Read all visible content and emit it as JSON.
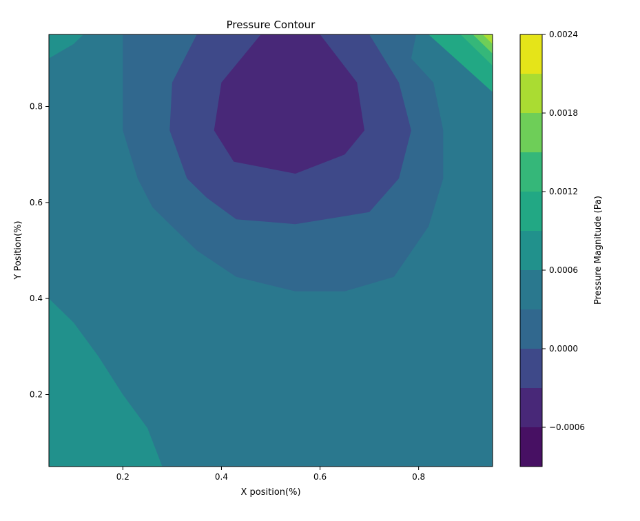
{
  "chart_data": {
    "type": "heatmap",
    "subtype": "filled-contour",
    "title": "Pressure Contour",
    "xlabel": "X position(%)",
    "ylabel": "Y Position(%)",
    "xlim": [
      0.05,
      0.95
    ],
    "ylim": [
      0.05,
      0.95
    ],
    "x_ticks": [
      0.2,
      0.4,
      0.6,
      0.8
    ],
    "y_ticks": [
      0.2,
      0.4,
      0.6,
      0.8
    ],
    "x_tick_labels": [
      "0.2",
      "0.4",
      "0.6",
      "0.8"
    ],
    "y_tick_labels": [
      "0.2",
      "0.4",
      "0.6",
      "0.8"
    ],
    "colorbar": {
      "label": "Pressure Magnitude (Pa)",
      "levels": [
        -0.0009,
        -0.0006,
        -0.0003,
        0.0,
        0.0003,
        0.0006,
        0.0009,
        0.0012,
        0.0015,
        0.0018,
        0.0021,
        0.0024
      ],
      "ticks": [
        -0.0006,
        0.0,
        0.0006,
        0.0012,
        0.0018,
        0.0024
      ],
      "tick_labels": [
        "−0.0006",
        "0.0000",
        "0.0006",
        "0.0012",
        "0.0018",
        "0.0024"
      ],
      "colors": [
        "#471063",
        "#482878",
        "#3e4989",
        "#31688e",
        "#2a788e",
        "#21918c",
        "#22a884",
        "#35b779",
        "#6ece58",
        "#aadc32",
        "#e5e419"
      ]
    },
    "contour_levels": [
      {
        "value": -0.0006,
        "points": [
          [
            0.385,
            0.75
          ],
          [
            0.425,
            0.685
          ],
          [
            0.55,
            0.66
          ],
          [
            0.65,
            0.7
          ],
          [
            0.69,
            0.75
          ],
          [
            0.675,
            0.85
          ],
          [
            0.6,
            0.95
          ],
          [
            0.48,
            0.95
          ],
          [
            0.4,
            0.85
          ],
          [
            0.385,
            0.75
          ]
        ]
      },
      {
        "value": -0.0003,
        "points": [
          [
            0.295,
            0.75
          ],
          [
            0.33,
            0.65
          ],
          [
            0.37,
            0.61
          ],
          [
            0.43,
            0.565
          ],
          [
            0.55,
            0.555
          ],
          [
            0.7,
            0.58
          ],
          [
            0.76,
            0.65
          ],
          [
            0.785,
            0.75
          ],
          [
            0.76,
            0.85
          ],
          [
            0.7,
            0.95
          ],
          [
            0.35,
            0.95
          ],
          [
            0.3,
            0.85
          ],
          [
            0.295,
            0.75
          ]
        ]
      },
      {
        "value": 0.0,
        "points": [
          [
            0.2,
            0.75
          ],
          [
            0.23,
            0.65
          ],
          [
            0.26,
            0.59
          ],
          [
            0.3,
            0.55
          ],
          [
            0.35,
            0.5
          ],
          [
            0.43,
            0.445
          ],
          [
            0.55,
            0.415
          ],
          [
            0.65,
            0.415
          ],
          [
            0.75,
            0.445
          ],
          [
            0.82,
            0.55
          ],
          [
            0.85,
            0.65
          ],
          [
            0.85,
            0.75
          ],
          [
            0.83,
            0.85
          ],
          [
            0.785,
            0.9
          ],
          [
            0.795,
            0.95
          ],
          [
            0.2,
            0.95
          ],
          [
            0.2,
            0.85
          ],
          [
            0.2,
            0.75
          ]
        ]
      },
      {
        "value": 0.0003,
        "points": [
          [
            0.05,
            0.4
          ],
          [
            0.1,
            0.35
          ],
          [
            0.15,
            0.28
          ],
          [
            0.2,
            0.2
          ],
          [
            0.25,
            0.13
          ],
          [
            0.28,
            0.05
          ],
          [
            0.95,
            0.05
          ],
          [
            0.95,
            0.95
          ],
          [
            0.05,
            0.95
          ],
          [
            0.05,
            0.4
          ]
        ]
      },
      {
        "value": 0.0006,
        "points": [
          [
            0.05,
            0.9
          ],
          [
            0.1,
            0.93
          ],
          [
            0.12,
            0.95
          ],
          [
            0.05,
            0.95
          ]
        ]
      },
      {
        "value": 0.0009,
        "points": [
          [
            0.82,
            0.95
          ],
          [
            0.95,
            0.83
          ],
          [
            0.95,
            0.95
          ]
        ]
      }
    ]
  }
}
